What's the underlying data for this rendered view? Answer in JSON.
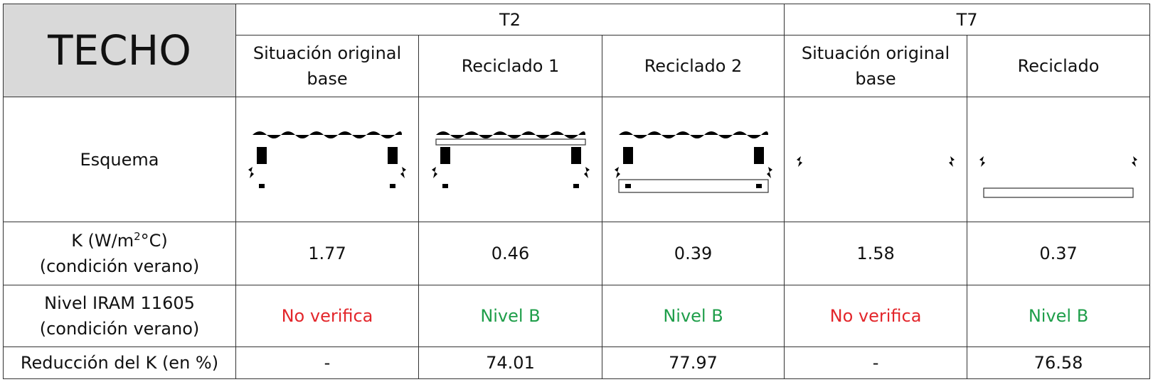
{
  "header": {
    "title": "TECHO",
    "groups": [
      "T2",
      "T7"
    ],
    "columns": [
      "Situación original base",
      "Reciclado 1",
      "Reciclado 2",
      "Situación original base",
      "Reciclado"
    ]
  },
  "rows": [
    {
      "label": "Esquema"
    },
    {
      "label_parts": [
        "K (W/m",
        "2",
        "°C)"
      ],
      "label_line2": "(condición verano)",
      "cells": [
        1.77,
        0.46,
        0.39,
        1.58,
        0.37
      ]
    },
    {
      "label_lines": [
        "Nivel IRAM 11605",
        "(condición verano)"
      ],
      "cells": [
        {
          "text": "No verifica",
          "color": "#e3262b"
        },
        {
          "text": "Nivel B",
          "color": "#1f9e4a"
        },
        {
          "text": "Nivel B",
          "color": "#1f9e4a"
        },
        {
          "text": "No verifica",
          "color": "#e3262b"
        },
        {
          "text": "Nivel B",
          "color": "#1f9e4a"
        }
      ]
    },
    {
      "label": "Reducción del K (en %)",
      "cells": [
        "-",
        74.01,
        77.97,
        "-",
        76.58
      ]
    }
  ]
}
